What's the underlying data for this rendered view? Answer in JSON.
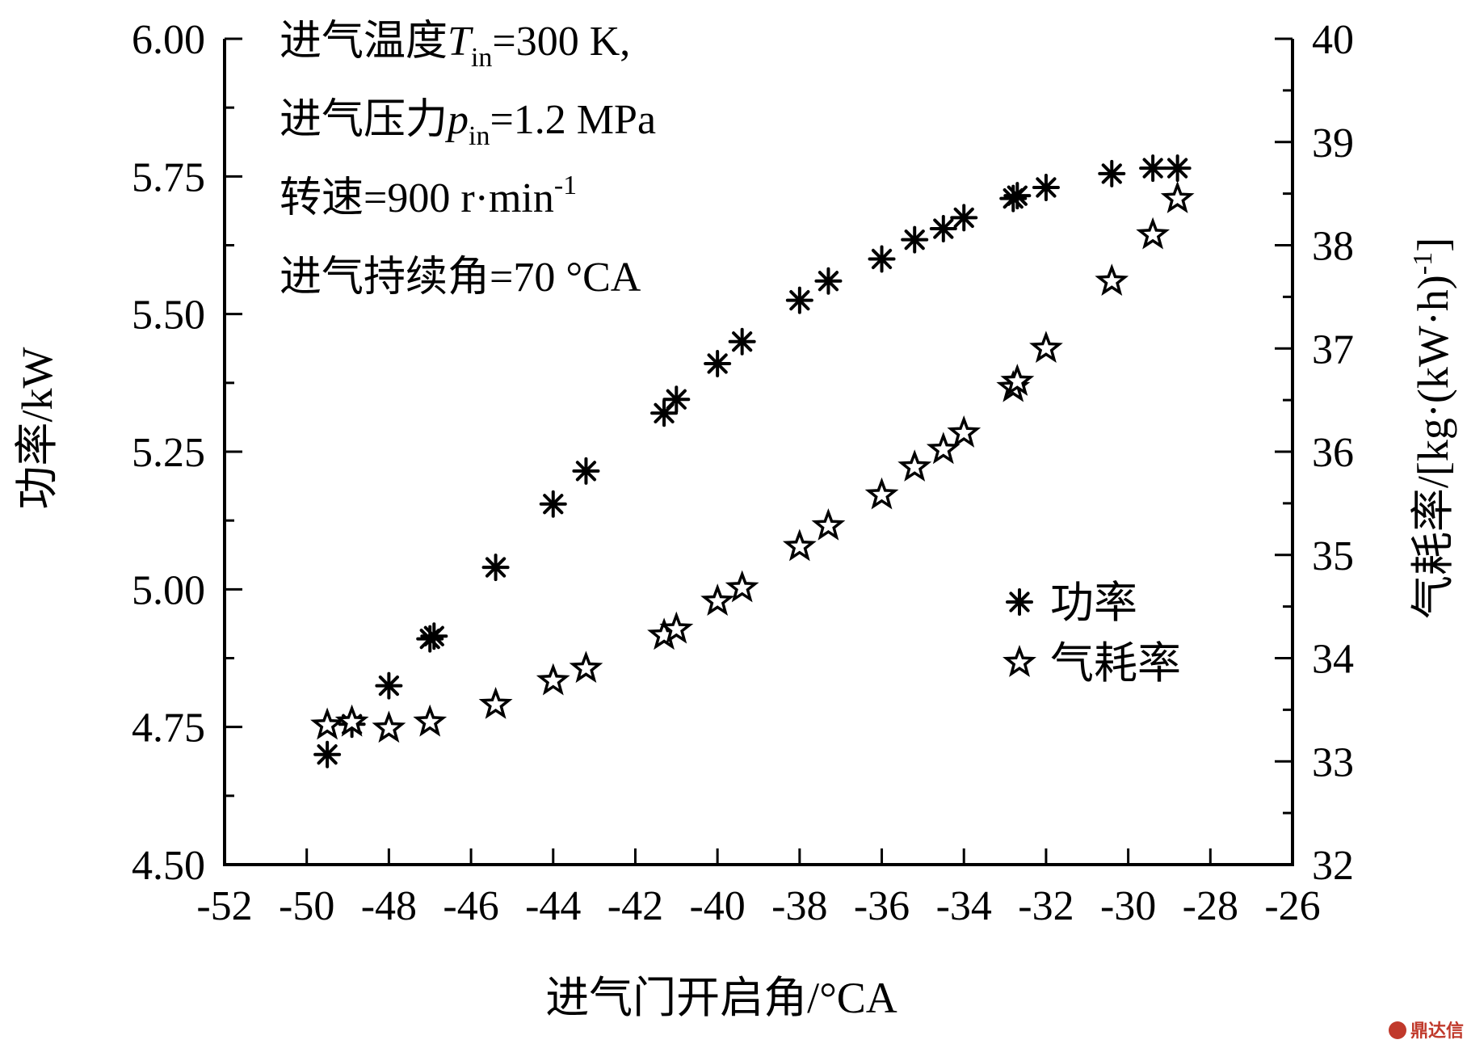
{
  "chart_data": {
    "type": "scatter",
    "xlabel": "进气门开启角/°CA",
    "ylabel_left": "功率/kW",
    "ylabel_right": "气耗率/[kg·(kW·h)",
    "ylabel_right_sup": "-1",
    "ylabel_right_close": "]",
    "xlim": [
      -52,
      -26
    ],
    "ylim_left": [
      4.5,
      6.0
    ],
    "ylim_right": [
      32,
      40
    ],
    "x_ticks": [
      "-52",
      "-50",
      "-48",
      "-46",
      "-44",
      "-42",
      "-40",
      "-38",
      "-36",
      "-34",
      "-32",
      "-30",
      "-28",
      "-26"
    ],
    "y_left_ticks": [
      "4.50",
      "4.75",
      "5.00",
      "5.25",
      "5.50",
      "5.75",
      "6.00"
    ],
    "y_right_ticks": [
      "32",
      "33",
      "34",
      "35",
      "36",
      "37",
      "38",
      "39",
      "40"
    ],
    "annotation_lines": [
      {
        "prefix": "进气温度",
        "var": "T",
        "sub": "in",
        "suffix": "=300 K,"
      },
      {
        "prefix": "进气压力",
        "var": "p",
        "sub": "in",
        "suffix": "=1.2 MPa"
      },
      {
        "prefix": "转速=900 r·min",
        "var": "",
        "sup": "-1",
        "suffix": ""
      },
      {
        "prefix": "进气持续角=70 °CA",
        "var": "",
        "sub": "",
        "suffix": ""
      }
    ],
    "legend_position": "right-center",
    "series": [
      {
        "name": "功率",
        "axis": "left",
        "marker": "asterisk",
        "x": [
          -49.5,
          -48.9,
          -48.0,
          -47.0,
          -46.9,
          -45.4,
          -44.0,
          -43.2,
          -41.3,
          -41.0,
          -40.0,
          -39.4,
          -38.0,
          -37.3,
          -36.0,
          -35.2,
          -34.5,
          -34.0,
          -32.8,
          -32.7,
          -32.0,
          -30.4,
          -29.4,
          -28.8
        ],
        "values": [
          4.7,
          4.755,
          4.825,
          4.91,
          4.915,
          5.04,
          5.155,
          5.215,
          5.32,
          5.345,
          5.41,
          5.45,
          5.525,
          5.56,
          5.6,
          5.635,
          5.655,
          5.675,
          5.71,
          5.715,
          5.73,
          5.755,
          5.765,
          5.765
        ]
      },
      {
        "name": "气耗率",
        "axis": "right",
        "marker": "star",
        "x": [
          -49.5,
          -48.9,
          -48.0,
          -47.0,
          -45.4,
          -44.0,
          -43.2,
          -41.3,
          -41.0,
          -40.0,
          -39.4,
          -38.0,
          -37.3,
          -36.0,
          -35.2,
          -34.5,
          -34.0,
          -32.8,
          -32.7,
          -32.0,
          -30.4,
          -29.4,
          -28.8
        ],
        "values": [
          33.35,
          33.38,
          33.32,
          33.38,
          33.55,
          33.78,
          33.9,
          34.22,
          34.28,
          34.55,
          34.68,
          35.08,
          35.28,
          35.58,
          35.85,
          36.02,
          36.18,
          36.62,
          36.68,
          37.0,
          37.65,
          38.1,
          38.45
        ]
      }
    ]
  },
  "watermark": "鼎达信"
}
